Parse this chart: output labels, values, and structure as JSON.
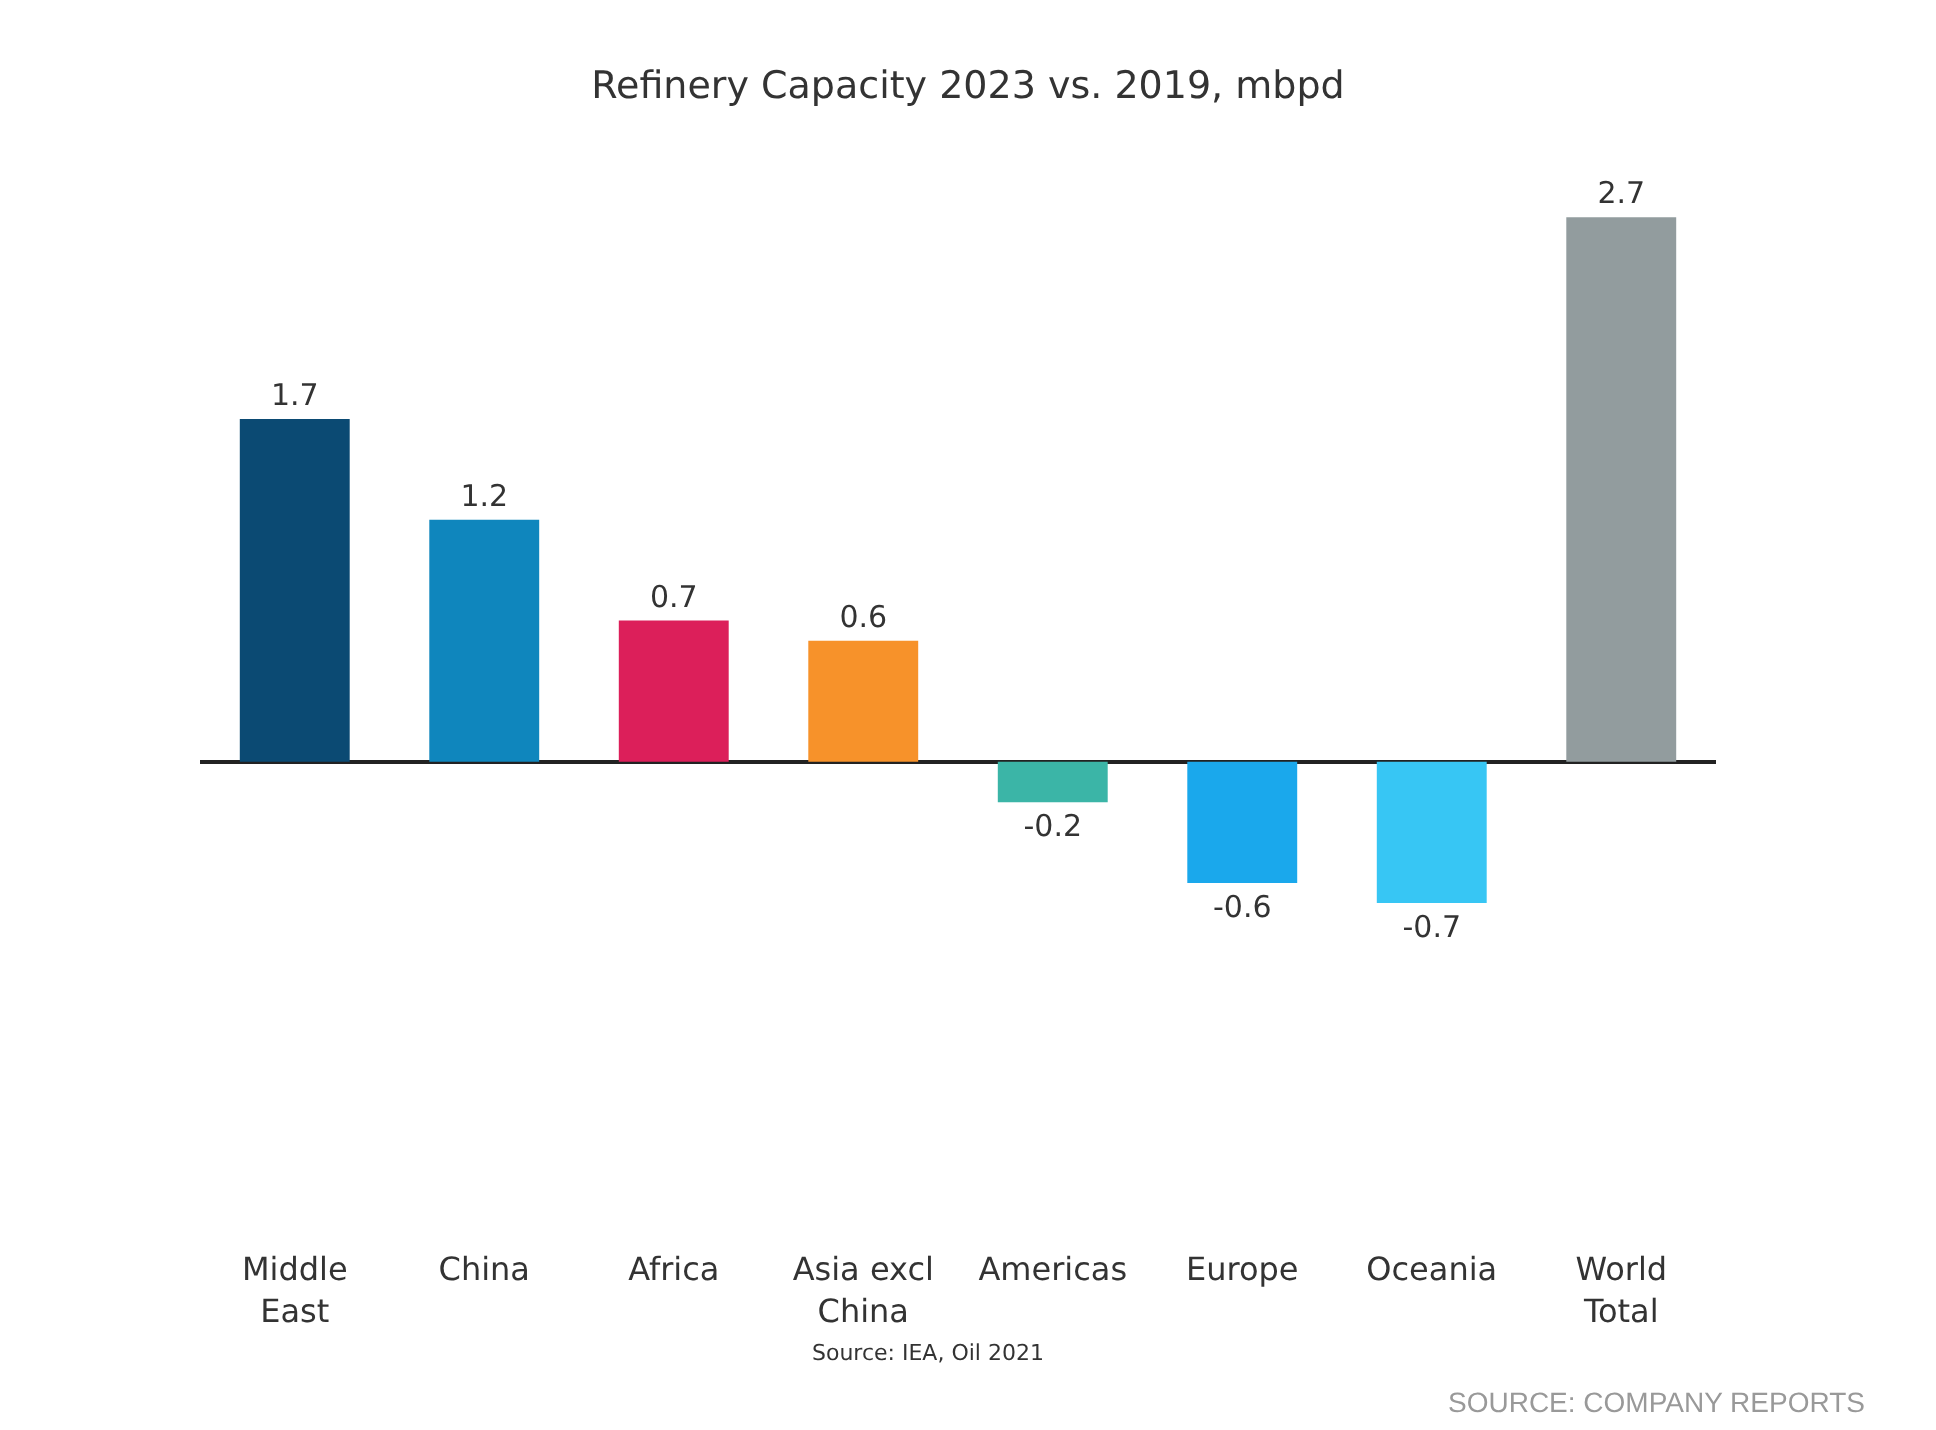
{
  "chart_data": {
    "type": "bar",
    "title": "Refinery Capacity 2023 vs. 2019, mbpd",
    "categories": [
      "Middle\nEast",
      "China",
      "Africa",
      "Asia excl\nChina",
      "Americas",
      "Europe",
      "Oceania",
      "World\nTotal"
    ],
    "values": [
      1.7,
      1.2,
      0.7,
      0.6,
      -0.2,
      -0.6,
      -0.7,
      2.7
    ],
    "colors": [
      "#0b4a73",
      "#0f86bd",
      "#dc1f5a",
      "#f7922a",
      "#3bb5a7",
      "#1aa8ec",
      "#37c6f4",
      "#929c9e"
    ],
    "data_labels": true,
    "grid": false,
    "annotations": [
      "Source: IEA, Oil 2021",
      "SOURCE: COMPANY REPORTS"
    ]
  }
}
